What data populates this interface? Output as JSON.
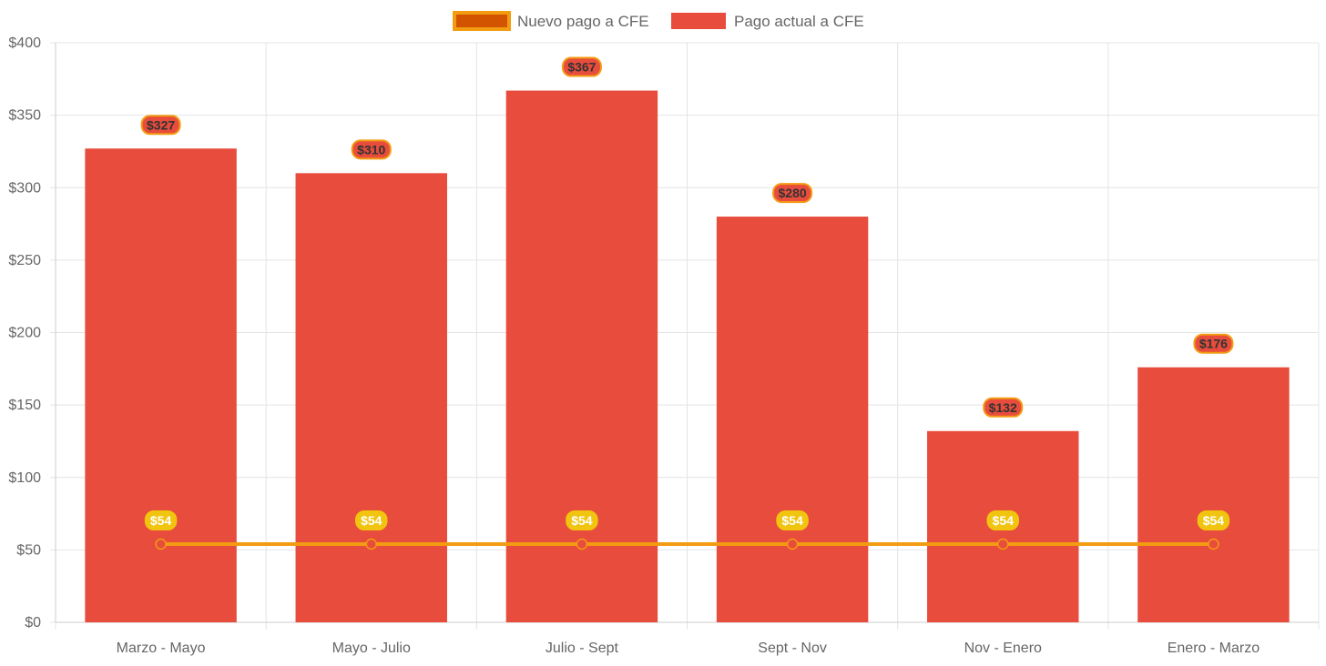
{
  "chart_data": {
    "type": "bar",
    "categories": [
      "Marzo - Mayo",
      "Mayo - Julio",
      "Julio - Sept",
      "Sept - Nov",
      "Nov - Enero",
      "Enero - Marzo"
    ],
    "series": [
      {
        "name": "Nuevo pago a CFE",
        "type": "line",
        "values": [
          54,
          54,
          54,
          54,
          54,
          54
        ],
        "color": "#f39c12",
        "fill": "#d35400",
        "point_color": "#e74c3c",
        "label_bg": "#f1c40f",
        "label_text_color": "#ffffff"
      },
      {
        "name": "Pago actual a CFE",
        "type": "bar",
        "values": [
          327,
          310,
          367,
          280,
          132,
          176
        ],
        "color": "#e74c3c",
        "label_border": "#f39c12",
        "label_text_color": "#333333"
      }
    ],
    "value_prefix": "$",
    "ylim": [
      0,
      400
    ],
    "yticks": [
      0,
      50,
      100,
      150,
      200,
      250,
      300,
      350,
      400
    ],
    "ytick_labels": [
      "$0",
      "$50",
      "$100",
      "$150",
      "$200",
      "$250",
      "$300",
      "$350",
      "$400"
    ],
    "grid": true,
    "legend_position": "top",
    "title": "",
    "xlabel": "",
    "ylabel": ""
  }
}
